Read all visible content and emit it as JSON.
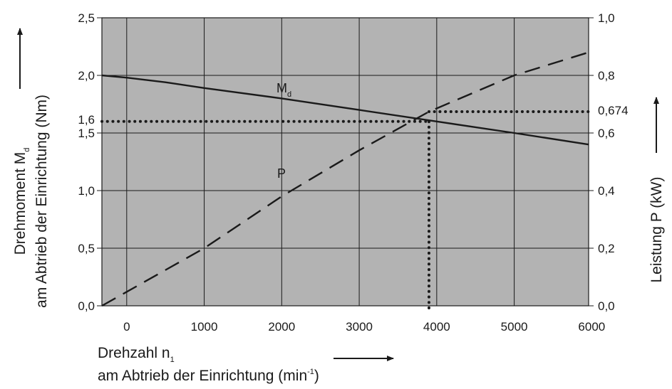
{
  "chart_data": {
    "type": "line",
    "x_axis": {
      "label_line1": "Drehzahl n",
      "label_line1_sub": "1",
      "label_line2": "am Abtrieb der Einrichtung (min",
      "label_line2_sup": "-1",
      "label_line2_end": ")",
      "xlim": [
        -320,
        5960
      ],
      "ticks": [
        0,
        1000,
        2000,
        3000,
        4000,
        5000,
        6000
      ],
      "tick_labels": [
        "0",
        "1000",
        "2000",
        "3000",
        "4000",
        "5000",
        "6000"
      ]
    },
    "y_left": {
      "label_line1": "Drehmoment M",
      "label_line1_sub": "d",
      "label_line2": "am Abtrieb der Einrichtung (Nm)",
      "ylim": [
        0,
        2.5
      ],
      "ticks": [
        0,
        0.5,
        1.0,
        1.5,
        2.0,
        2.5
      ],
      "tick_labels": [
        "0,0",
        "0,5",
        "1,0",
        "1,5",
        "2,0",
        "2,5"
      ],
      "extra_tick": {
        "value": 1.6,
        "label": "1,6"
      }
    },
    "y_right": {
      "label": "Leistung P (kW)",
      "ylim": [
        0,
        1.0
      ],
      "ticks": [
        0,
        0.2,
        0.4,
        0.6,
        0.8,
        1.0
      ],
      "tick_labels": [
        "0,0",
        "0,2",
        "0,4",
        "0,6",
        "0,8",
        "1,0"
      ],
      "extra_tick": {
        "value": 0.674,
        "label": "0,674"
      }
    },
    "grid": true,
    "series": [
      {
        "name": "M",
        "name_sub": "d",
        "axis": "left",
        "style": "solid",
        "x": [
          -320,
          0,
          500,
          1000,
          2000,
          3000,
          4000,
          5000,
          5960
        ],
        "y": [
          2.0,
          1.98,
          1.94,
          1.89,
          1.8,
          1.7,
          1.6,
          1.5,
          1.4
        ]
      },
      {
        "name": "P",
        "axis": "right",
        "style": "dashed",
        "x": [
          -320,
          1000,
          2000,
          3000,
          3900,
          5000,
          5960
        ],
        "y": [
          0.0,
          0.2,
          0.38,
          0.54,
          0.674,
          0.8,
          0.88
        ]
      }
    ],
    "reference_lines": [
      {
        "type": "horizontal",
        "axis": "left",
        "value": 1.6,
        "x_from": -320,
        "x_to": 3900
      },
      {
        "type": "horizontal",
        "axis": "right",
        "value": 0.674,
        "x_from": 3900,
        "x_to": 5960
      },
      {
        "type": "vertical",
        "value": 3900,
        "y_from": 0,
        "y_to": 1.6
      }
    ],
    "colors": {
      "plot_bg": "#b3b3b3",
      "grid": "#1a1a1a",
      "lines": "#1a1a1a"
    }
  }
}
